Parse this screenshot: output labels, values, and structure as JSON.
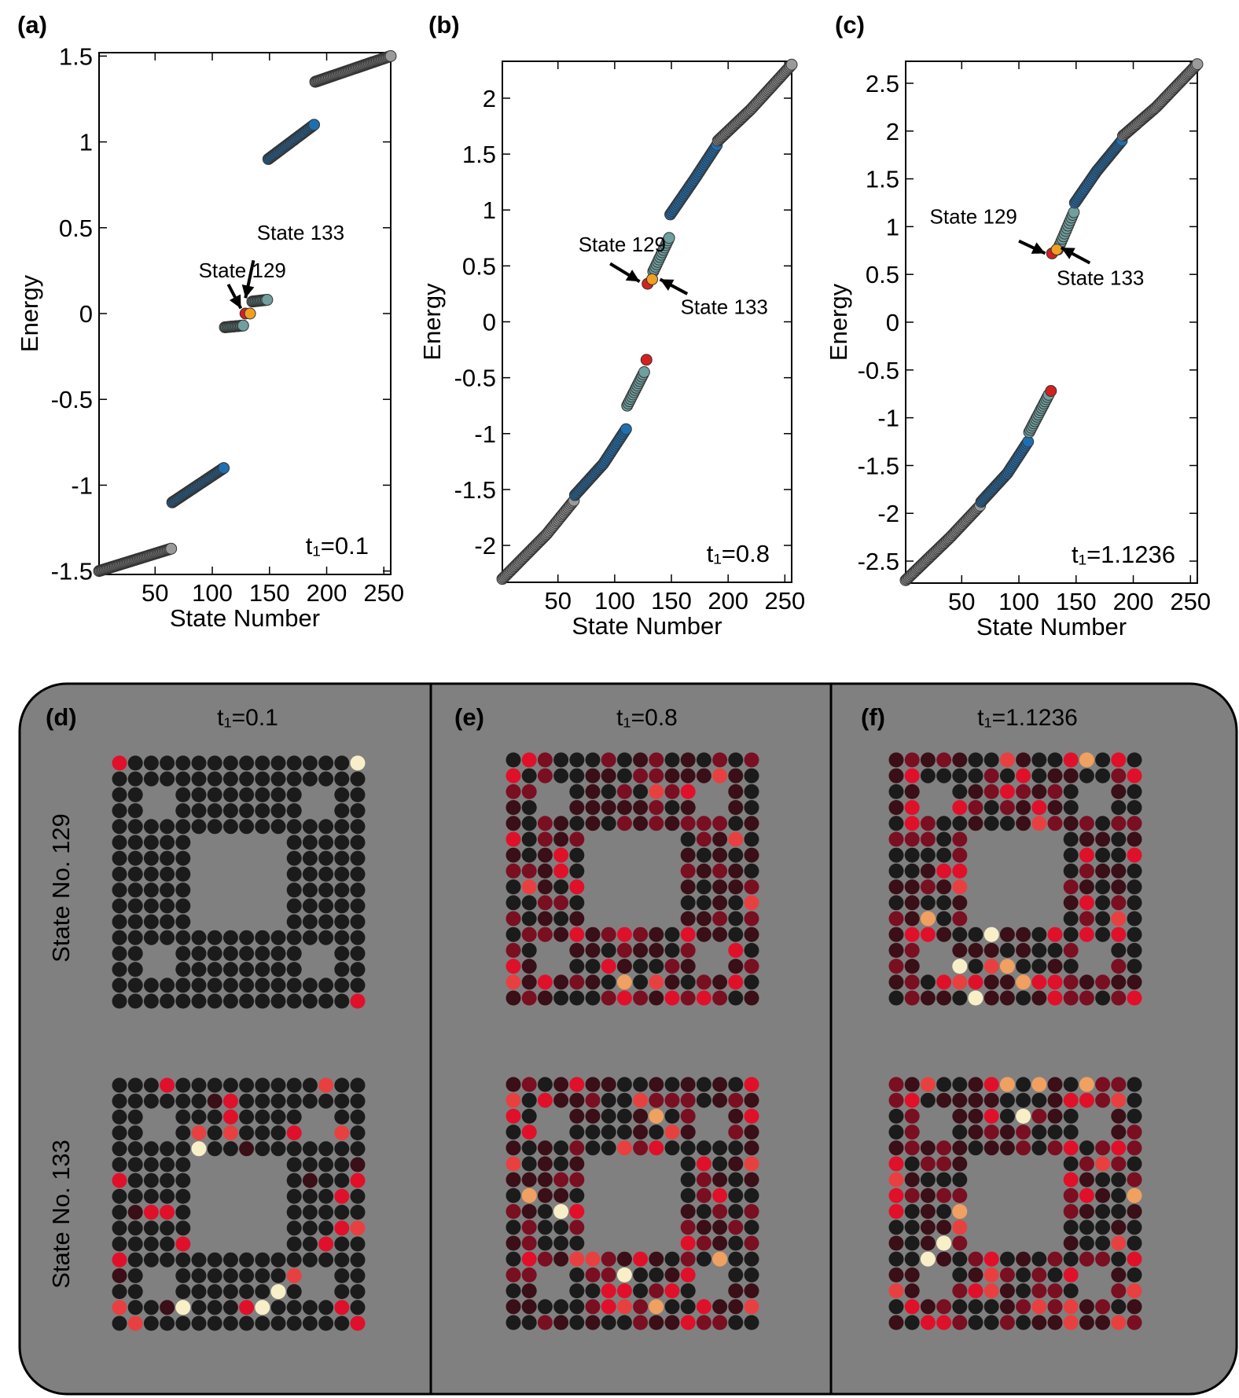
{
  "colors": {
    "outer_band": "#9a9a9a",
    "middle_band": "#1f6fb0",
    "inner_band": "#6f9f9e",
    "state_129": "#d42020",
    "state_133": "#f0a020",
    "site_dark": "#1b1b1b",
    "site_dim": "#3a0f17",
    "site_mid": "#7a0f22",
    "site_bright": "#e0102a",
    "site_light": "#e84040",
    "site_hot": "#f0a060",
    "site_max": "#f8eec8",
    "panel_bg": "#808080"
  },
  "chart_data": [
    {
      "type": "scatter",
      "panel_label": "(a)",
      "annotation": "t₁=0.1",
      "xlabel": "State Number",
      "ylabel": "Energy",
      "xlim": [
        1,
        256
      ],
      "ylim": [
        -1.52,
        1.52
      ],
      "xticks": [
        50,
        100,
        150,
        200,
        250
      ],
      "yticks": [
        -1.5,
        -1,
        -0.5,
        0,
        0.5,
        1,
        1.5
      ],
      "ytick_labels": [
        "-1.5",
        "-1",
        "-0.5",
        "0",
        "0.5",
        "1",
        "1.5"
      ],
      "series": [
        {
          "color_key": "outer_band",
          "points": [
            [
              1,
              -1.5
            ],
            [
              64,
              -1.37
            ]
          ]
        },
        {
          "color_key": "middle_band",
          "points": [
            [
              65,
              -1.1
            ],
            [
              110,
              -0.9
            ]
          ]
        },
        {
          "color_key": "inner_band",
          "points": [
            [
              111,
              -0.08
            ],
            [
              127,
              -0.07
            ]
          ]
        },
        {
          "color_key": "inner_band",
          "points": [
            [
              135,
              0.07
            ],
            [
              148,
              0.08
            ]
          ]
        },
        {
          "color_key": "middle_band",
          "points": [
            [
              149,
              0.9
            ],
            [
              189,
              1.1
            ]
          ]
        },
        {
          "color_key": "outer_band",
          "points": [
            [
              190,
              1.35
            ],
            [
              256,
              1.5
            ]
          ]
        }
      ],
      "highlights": [
        {
          "state": 129,
          "energy": 0.0,
          "color_key": "state_129"
        },
        {
          "state": 133,
          "energy": 0.0,
          "color_key": "state_133"
        }
      ],
      "callouts": [
        {
          "label": "State 129",
          "text_at": [
            88,
            0.21
          ],
          "arrow_from": [
            114,
            0.17
          ],
          "arrow_to": [
            125,
            0.03
          ]
        },
        {
          "label": "State 133",
          "text_at": [
            139,
            0.43
          ],
          "arrow_from": [
            136,
            0.31
          ],
          "arrow_to": [
            129,
            0.09
          ]
        }
      ]
    },
    {
      "type": "scatter",
      "panel_label": "(b)",
      "annotation": "t₁=0.8",
      "xlabel": "State Number",
      "ylabel": "Energy",
      "xlim": [
        1,
        256
      ],
      "ylim": [
        -2.33,
        2.33
      ],
      "xticks": [
        50,
        100,
        150,
        200,
        250
      ],
      "yticks": [
        -2,
        -1.5,
        -1,
        -0.5,
        0,
        0.5,
        1,
        1.5,
        2
      ],
      "ytick_labels": [
        "-2",
        "-1.5",
        "-1",
        "-0.5",
        "0",
        "0.5",
        "1",
        "1.5",
        "2"
      ],
      "series": [
        {
          "color_key": "outer_band",
          "points": [
            [
              1,
              -2.3
            ],
            [
              40,
              -1.9
            ],
            [
              64,
              -1.6
            ]
          ]
        },
        {
          "color_key": "middle_band",
          "points": [
            [
              65,
              -1.55
            ],
            [
              90,
              -1.27
            ],
            [
              110,
              -0.96
            ]
          ]
        },
        {
          "color_key": "inner_band",
          "points": [
            [
              111,
              -0.75
            ],
            [
              126,
              -0.45
            ]
          ]
        },
        {
          "color_key": "red_point",
          "points": []
        },
        {
          "color_key": "inner_band",
          "points": [
            [
              134,
              0.45
            ],
            [
              148,
              0.75
            ]
          ]
        },
        {
          "color_key": "middle_band",
          "points": [
            [
              149,
              0.96
            ],
            [
              170,
              1.27
            ],
            [
              190,
              1.58
            ]
          ]
        },
        {
          "color_key": "outer_band",
          "points": [
            [
              191,
              1.62
            ],
            [
              220,
              1.9
            ],
            [
              256,
              2.3
            ]
          ]
        }
      ],
      "highlights": [
        {
          "state": 128,
          "energy": -0.34,
          "color_key": "state_129"
        },
        {
          "state": 129,
          "energy": 0.34,
          "color_key": "state_129"
        },
        {
          "state": 133,
          "energy": 0.38,
          "color_key": "state_133"
        }
      ],
      "callouts": [
        {
          "label": "State 129",
          "text_at": [
            68,
            0.63
          ],
          "arrow_from": [
            96,
            0.52
          ],
          "arrow_to": [
            122,
            0.36
          ]
        },
        {
          "label": "State 133",
          "text_at": [
            158,
            0.07
          ],
          "arrow_from": [
            164,
            0.25
          ],
          "arrow_to": [
            140,
            0.38
          ]
        }
      ]
    },
    {
      "type": "scatter",
      "panel_label": "(c)",
      "annotation": "t₁=1.1236",
      "xlabel": "State Number",
      "ylabel": "Energy",
      "xlim": [
        1,
        256
      ],
      "ylim": [
        -2.73,
        2.73
      ],
      "xticks": [
        50,
        100,
        150,
        200,
        250
      ],
      "yticks": [
        -2.5,
        -2,
        -1.5,
        -1,
        -0.5,
        0,
        0.5,
        1,
        1.5,
        2,
        2.5
      ],
      "ytick_labels": [
        "-2.5",
        "-2",
        "-1.5",
        "-1",
        "-0.5",
        "0",
        "0.5",
        "1",
        "1.5",
        "2",
        "2.5"
      ],
      "series": [
        {
          "color_key": "outer_band",
          "points": [
            [
              1,
              -2.7
            ],
            [
              40,
              -2.25
            ],
            [
              66,
              -1.92
            ]
          ]
        },
        {
          "color_key": "middle_band",
          "points": [
            [
              67,
              -1.88
            ],
            [
              90,
              -1.58
            ],
            [
              108,
              -1.25
            ]
          ]
        },
        {
          "color_key": "inner_band",
          "points": [
            [
              109,
              -1.15
            ],
            [
              126,
              -0.76
            ]
          ]
        },
        {
          "color_key": "inner_band",
          "points": [
            [
              134,
              0.76
            ],
            [
              148,
              1.15
            ]
          ]
        },
        {
          "color_key": "middle_band",
          "points": [
            [
              149,
              1.25
            ],
            [
              168,
              1.58
            ],
            [
              190,
              1.9
            ]
          ]
        },
        {
          "color_key": "outer_band",
          "points": [
            [
              191,
              1.95
            ],
            [
              220,
              2.25
            ],
            [
              256,
              2.7
            ]
          ]
        }
      ],
      "highlights": [
        {
          "state": 128,
          "energy": -0.72,
          "color_key": "state_129"
        },
        {
          "state": 129,
          "energy": 0.72,
          "color_key": "state_129"
        },
        {
          "state": 133,
          "energy": 0.76,
          "color_key": "state_133"
        }
      ],
      "callouts": [
        {
          "label": "State 129",
          "text_at": [
            22,
            1.03
          ],
          "arrow_from": [
            100,
            0.85
          ],
          "arrow_to": [
            123,
            0.72
          ]
        },
        {
          "label": "State 133",
          "text_at": [
            133,
            0.39
          ],
          "arrow_from": [
            162,
            0.62
          ],
          "arrow_to": [
            137,
            0.78
          ]
        }
      ]
    }
  ],
  "density_panels": [
    {
      "label": "(d)",
      "title": "t₁=0.1"
    },
    {
      "label": "(e)",
      "title": "t₁=0.8"
    },
    {
      "label": "(f)",
      "title": "t₁=1.1236"
    }
  ],
  "row_labels": [
    "State No. 129",
    "State No. 133"
  ]
}
